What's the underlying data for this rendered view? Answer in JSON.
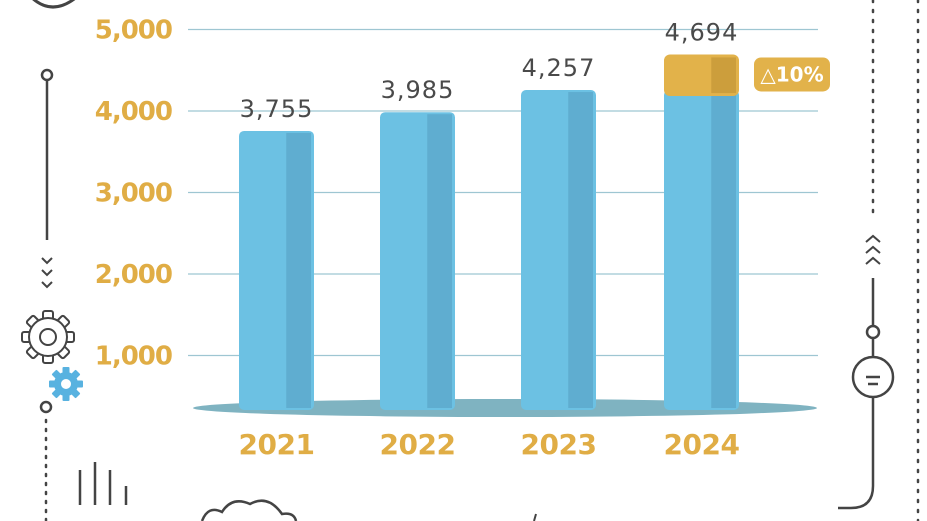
{
  "colors": {
    "bar": "#6cc1e3",
    "bar_shade": "#5fadd0",
    "top_segment": "#e2b24a",
    "top_segment_shade": "#cc9e3c",
    "tick_label": "#e0ad45",
    "value_label": "#4a4a4a",
    "gridline": "#9ec6d2",
    "floor": "#7fb3c1",
    "decoration": "#444444",
    "gear_accent": "#58b2e0"
  },
  "chart_data": {
    "type": "bar",
    "categories": [
      "2021",
      "2022",
      "2023",
      "2024"
    ],
    "values": [
      3755,
      3985,
      4257,
      4694
    ],
    "value_labels": [
      "3,755",
      "3,985",
      "4,257",
      "4,694"
    ],
    "yticks": [
      "1,000",
      "2,000",
      "3,000",
      "4,000",
      "5,000"
    ],
    "ylim": [
      0,
      5000
    ],
    "grid": true,
    "title": "",
    "xlabel": "",
    "ylabel": "",
    "highlight": {
      "category": "2024",
      "from": 4257,
      "to": 4694,
      "badge": "△10%"
    }
  },
  "decorations": {
    "icons": [
      "chevrons-down-icon",
      "gear-outline-icon",
      "gear-filled-icon",
      "chevrons-up-icon",
      "circle-equals-icon",
      "bars-icon",
      "cloud-icon"
    ]
  }
}
